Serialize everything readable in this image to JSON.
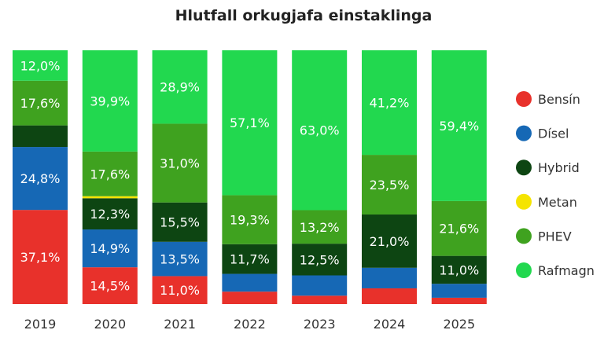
{
  "chart_data": {
    "type": "bar",
    "stacked": true,
    "normalized": true,
    "title": "Hlutfall orkugjafa einstaklinga",
    "xlabel": "",
    "ylabel": "",
    "ylim": [
      0,
      100
    ],
    "legend_position": "right",
    "categories": [
      "2019",
      "2020",
      "2021",
      "2022",
      "2023",
      "2024",
      "2025"
    ],
    "series": [
      {
        "name": "Bensín",
        "color": "#E8312B",
        "values": [
          37.1,
          14.5,
          11.0,
          4.9,
          3.3,
          6.2,
          2.5
        ],
        "labels": [
          "37,1%",
          "14,5%",
          "11,0%",
          "",
          "",
          "",
          ""
        ]
      },
      {
        "name": "Dísel",
        "color": "#1668B5",
        "values": [
          24.8,
          14.9,
          13.5,
          7.0,
          8.0,
          8.1,
          5.5
        ],
        "labels": [
          "24,8%",
          "14,9%",
          "13,5%",
          "",
          "",
          "",
          ""
        ]
      },
      {
        "name": "Hybrid",
        "color": "#0D4512",
        "values": [
          8.5,
          12.3,
          15.5,
          11.7,
          12.5,
          21.0,
          11.0
        ],
        "labels": [
          "",
          "12,3%",
          "15,5%",
          "11,7%",
          "12,5%",
          "21,0%",
          "11,0%"
        ]
      },
      {
        "name": "Metan",
        "color": "#F5E400",
        "values": [
          0,
          0.8,
          0,
          0,
          0,
          0,
          0
        ],
        "labels": [
          "",
          "",
          "",
          "",
          "",
          "",
          ""
        ]
      },
      {
        "name": "PHEV",
        "color": "#3FA21F",
        "values": [
          17.6,
          17.6,
          31.0,
          19.3,
          13.2,
          23.5,
          21.6
        ],
        "labels": [
          "17,6%",
          "17,6%",
          "31,0%",
          "19,3%",
          "13,2%",
          "23,5%",
          "21,6%"
        ]
      },
      {
        "name": "Rafmagn",
        "color": "#22D84F",
        "values": [
          12.0,
          39.9,
          28.9,
          57.1,
          63.0,
          41.2,
          59.4
        ],
        "labels": [
          "12,0%",
          "39,9%",
          "28,9%",
          "57,1%",
          "63,0%",
          "41,2%",
          "59,4%"
        ]
      }
    ]
  }
}
